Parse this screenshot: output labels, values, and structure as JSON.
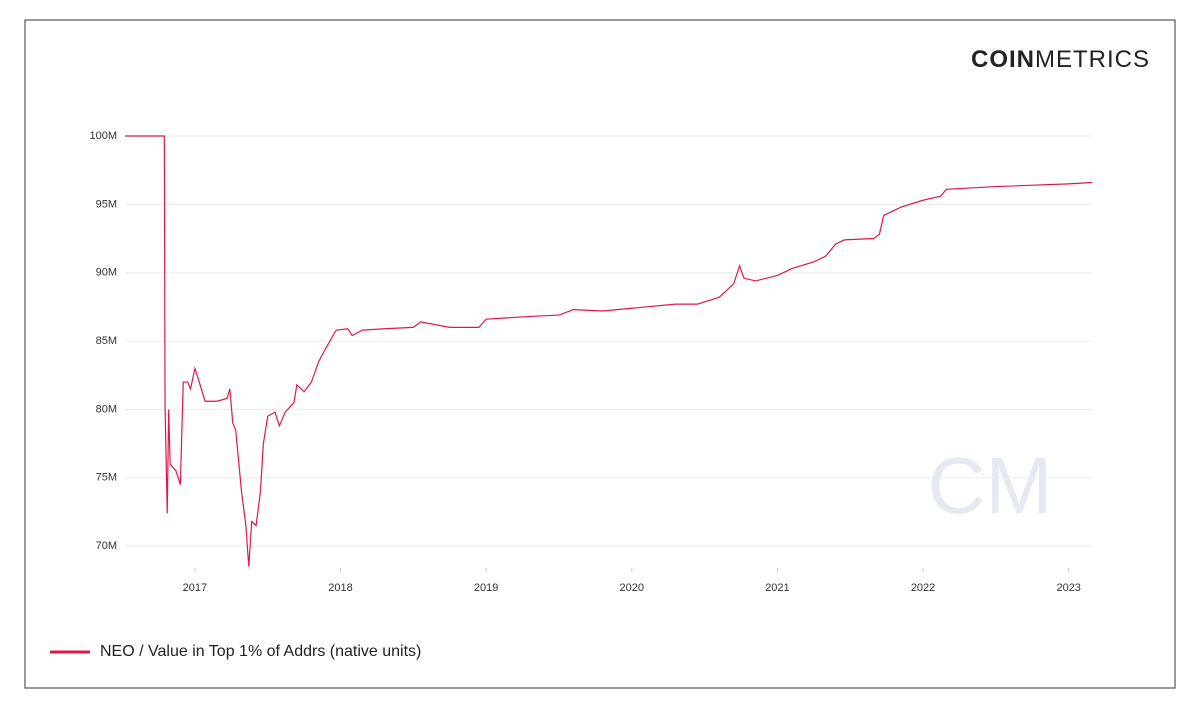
{
  "logo_bold": "COIN",
  "logo_light": "METRICS",
  "watermark": "CM",
  "chart_data": {
    "type": "line",
    "x": [
      2016.52,
      2016.79,
      2016.795,
      2016.81,
      2016.82,
      2016.83,
      2016.87,
      2016.9,
      2016.92,
      2016.95,
      2016.97,
      2017.0,
      2017.03,
      2017.07,
      2017.15,
      2017.22,
      2017.24,
      2017.26,
      2017.28,
      2017.32,
      2017.35,
      2017.37,
      2017.39,
      2017.42,
      2017.45,
      2017.47,
      2017.5,
      2017.55,
      2017.58,
      2017.62,
      2017.68,
      2017.7,
      2017.75,
      2017.8,
      2017.85,
      2017.9,
      2017.97,
      2018.05,
      2018.08,
      2018.15,
      2018.3,
      2018.5,
      2018.55,
      2018.75,
      2018.95,
      2019.0,
      2019.3,
      2019.5,
      2019.6,
      2019.8,
      2020.0,
      2020.3,
      2020.45,
      2020.6,
      2020.7,
      2020.74,
      2020.77,
      2020.85,
      2021.0,
      2021.1,
      2021.25,
      2021.33,
      2021.4,
      2021.46,
      2021.66,
      2021.7,
      2021.73,
      2021.85,
      2022.0,
      2022.12,
      2022.16,
      2022.5,
      2023.0,
      2023.16
    ],
    "series": [
      {
        "name": "NEO / Value in Top 1% of Addrs (native units)",
        "color": "#e0184a",
        "values": [
          100000000,
          100000000,
          80300000,
          72400000,
          80000000,
          76000000,
          75500000,
          74500000,
          82000000,
          82000000,
          81500000,
          83000000,
          82000000,
          80600000,
          80600000,
          80800000,
          81500000,
          79000000,
          78500000,
          74000000,
          71500000,
          68500000,
          71800000,
          71500000,
          74000000,
          77500000,
          79500000,
          79800000,
          78800000,
          79800000,
          80500000,
          81800000,
          81300000,
          82000000,
          83500000,
          84500000,
          85800000,
          85900000,
          85400000,
          85800000,
          85900000,
          86000000,
          86400000,
          86000000,
          86000000,
          86600000,
          86800000,
          86900000,
          87300000,
          87200000,
          87400000,
          87700000,
          87700000,
          88200000,
          89200000,
          90500000,
          89600000,
          89400000,
          89800000,
          90300000,
          90800000,
          91200000,
          92100000,
          92400000,
          92500000,
          92800000,
          94200000,
          94800000,
          95300000,
          95600000,
          96100000,
          96300000,
          96500000,
          96600000
        ]
      }
    ],
    "xlim": [
      2016.52,
      2023.16
    ],
    "xticks": [
      2017,
      2018,
      2019,
      2020,
      2021,
      2022,
      2023
    ],
    "ylim": [
      68400000,
      100000000
    ],
    "yticks": [
      {
        "value": 70000000,
        "label": "70M"
      },
      {
        "value": 75000000,
        "label": "75M"
      },
      {
        "value": 80000000,
        "label": "80M"
      },
      {
        "value": 85000000,
        "label": "85M"
      },
      {
        "value": 90000000,
        "label": "90M"
      },
      {
        "value": 95000000,
        "label": "95M"
      },
      {
        "value": 100000000,
        "label": "100M"
      }
    ],
    "grid": true,
    "legend": "bottom-left"
  }
}
